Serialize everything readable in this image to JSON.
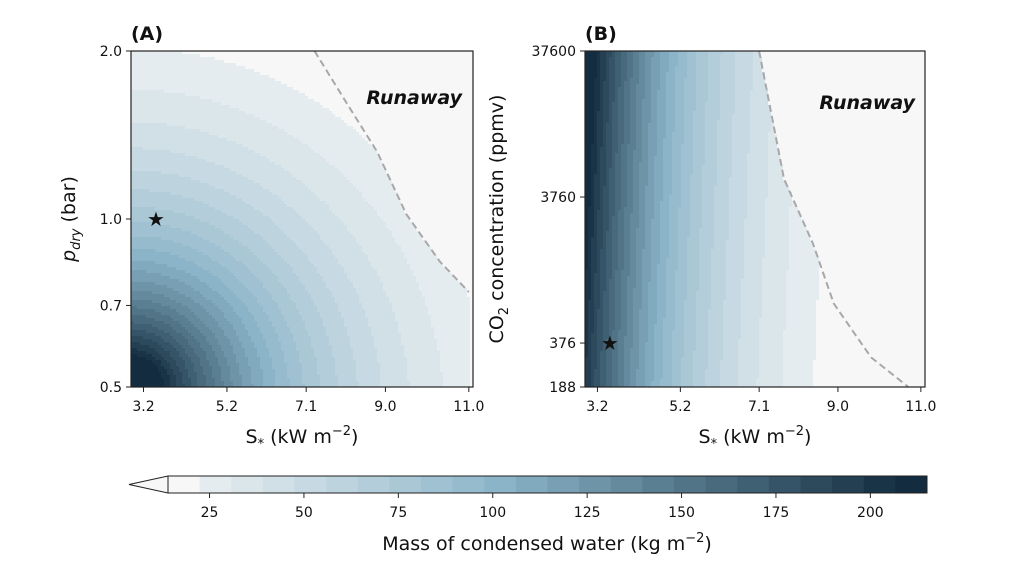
{
  "chart_data": [
    {
      "type": "heatmap",
      "panel_label": "(A)",
      "xlabel": "S",
      "xlabel_subscript": "*",
      "xlabel_units": " (kW m",
      "xlabel_exp": "−2",
      "ylabel": "p",
      "ylabel_subscript": "dry",
      "ylabel_units": " (bar)",
      "x_ticks": [
        "3.2",
        "5.2",
        "7.1",
        "9.0",
        "11.0"
      ],
      "y_ticks": [
        "0.5",
        "0.7",
        "1.0",
        "2.0"
      ],
      "x_range": [
        2.9,
        11.1
      ],
      "y_range": [
        0.5,
        2.0
      ],
      "y_scale": "log",
      "annotation": "Runaway",
      "marker": {
        "x": 3.5,
        "y": 1.0,
        "symbol": "star",
        "color": "#ee5a24"
      },
      "runaway_boundary": [
        [
          7.3,
          2.0
        ],
        [
          8.1,
          1.6
        ],
        [
          8.8,
          1.32
        ],
        [
          9.5,
          1.02
        ],
        [
          10.3,
          0.84
        ],
        [
          11.0,
          0.74
        ]
      ],
      "field": {
        "max_value": 215,
        "max_at": [
          2.9,
          0.5
        ]
      }
    },
    {
      "type": "heatmap",
      "panel_label": "(B)",
      "xlabel": "S",
      "xlabel_subscript": "*",
      "xlabel_units": " (kW m",
      "xlabel_exp": "−2",
      "ylabel": "CO",
      "ylabel_subscript": "2",
      "ylabel_units": " concentration (ppmv)",
      "x_ticks": [
        "3.2",
        "5.2",
        "7.1",
        "9.0",
        "11.0"
      ],
      "y_ticks": [
        "188",
        "376",
        "3760",
        "37600"
      ],
      "x_range": [
        2.9,
        11.1
      ],
      "y_range": [
        188,
        37600
      ],
      "y_scale": "log",
      "annotation": "Runaway",
      "marker": {
        "x": 3.5,
        "y": 376,
        "symbol": "star",
        "color": "#ee5a24"
      },
      "runaway_boundary": [
        [
          7.1,
          37600
        ],
        [
          7.7,
          5000
        ],
        [
          8.4,
          1800
        ],
        [
          8.9,
          700
        ],
        [
          9.8,
          300
        ],
        [
          10.7,
          188
        ]
      ],
      "field": {
        "max_value": 200,
        "max_at": [
          2.9,
          37600
        ]
      }
    }
  ],
  "colorbar": {
    "label": "Mass of condensed water (kg m",
    "label_exp": "−2",
    "label_end": ")",
    "ticks": [
      "25",
      "50",
      "75",
      "100",
      "125",
      "150",
      "175",
      "200"
    ],
    "tick_values": [
      25,
      50,
      75,
      100,
      125,
      150,
      175,
      200
    ],
    "range": [
      14,
      215
    ],
    "extend": "min",
    "color_low": "#f7f7f7",
    "color_high": "#0d2638"
  }
}
